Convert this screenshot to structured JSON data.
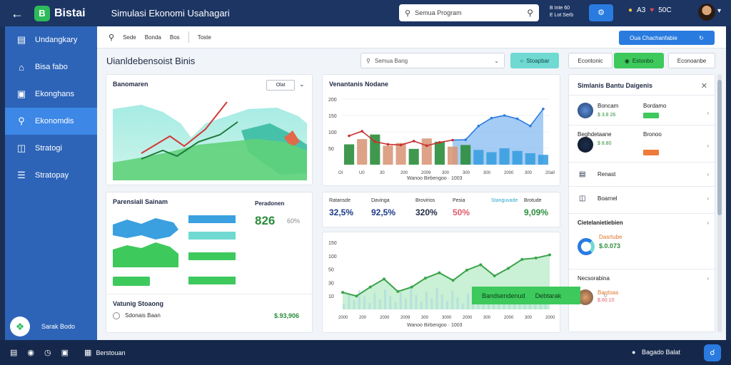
{
  "topbar": {
    "logo_badge": "B",
    "logo_text": "Bistai",
    "app_title": "Simulasi Ekonomi Usahagari",
    "search_placeholder": "Semua Program",
    "status_line1": "B Inte 60",
    "status_line2": "E Lot Serb",
    "user_count": "A3",
    "balance": "50C"
  },
  "sidebar": {
    "items": [
      {
        "label": "Undangkary",
        "icon": "doc-icon"
      },
      {
        "label": "Bisa fabo",
        "icon": "home-icon"
      },
      {
        "label": "Ekonghans",
        "icon": "tag-icon"
      },
      {
        "label": "Ekonomdis",
        "icon": "search-icon",
        "active": true
      },
      {
        "label": "Stratogi",
        "icon": "book-icon"
      },
      {
        "label": "Stratopay",
        "icon": "list-icon"
      }
    ],
    "footer_label": "Sarak Bodo"
  },
  "toolbar": {
    "items": [
      "Sede",
      "Bonda",
      "Bos",
      "Toste"
    ],
    "action_label": "Oua Chachanfabie"
  },
  "page_title": "Uianldebensoist Binis",
  "filter": {
    "placeholder": "Semua Bang"
  },
  "buttons": {
    "teal": "Stoapbar",
    "white1": "Econtonic",
    "green": "Estonbo",
    "white2": "Econoanbe"
  },
  "map_card": {
    "title": "Banomaren",
    "dropdown": "Olat"
  },
  "bars_card": {
    "title": "Venantanis Nodane",
    "footer": "Wanoo Birbengoo · 1003",
    "y_ticks": [
      "200",
      "150",
      "100",
      "50"
    ],
    "x_ticks": [
      "Ol",
      "U0",
      "30",
      "200",
      "2009",
      "300",
      "300",
      "300",
      "2000",
      "300",
      "20a0"
    ]
  },
  "econ_card": {
    "title": "Parensiali Sainam",
    "value_label": "Peradonen",
    "value": "826",
    "value_sub": "60%",
    "section_title": "Vatunig Stoaong",
    "row_label": "Sdonais Baan",
    "row_value": "$.93,906"
  },
  "stats": [
    {
      "label": "Ratansde",
      "value": "32,5%",
      "color": "#1e3a8a"
    },
    {
      "label": "Davinga",
      "value": "92,5%",
      "color": "#1e3a8a"
    },
    {
      "label": "Brovirios",
      "value": "320%",
      "color": "#1f2a44"
    },
    {
      "label": "Pesia",
      "value": "50%",
      "color": "#e05a6b"
    },
    {
      "label": "Stanguvade",
      "value": "",
      "color": "#2aa7c9"
    },
    {
      "label": "Brotude",
      "value": "9,09%",
      "color": "#2b8d3b"
    }
  ],
  "line_card": {
    "footer": "Wanoo Birbengoo · 1003",
    "y_ticks": [
      "150",
      "100",
      "50",
      "30",
      "10"
    ],
    "x_ticks": [
      "2000",
      "200",
      "2000",
      "2009",
      "300",
      "3000",
      "2000",
      "300",
      "2000",
      "300",
      "2000"
    ]
  },
  "right_panel": {
    "title": "Simlanis Bantu Daigenis",
    "items": [
      {
        "label": "Boncam",
        "sub": "$ 3.8 26",
        "tag": "Bordamo"
      },
      {
        "label": "Beghdetaane",
        "sub": "$ 8.80",
        "tag": "Bronoo"
      },
      {
        "label": "Renast",
        "sub": "",
        "tag": ""
      },
      {
        "label": "Boarnel",
        "sub": "",
        "tag": ""
      },
      {
        "label": "Cietelanietiebien",
        "sub": "$.0.073",
        "tag": "Dasrtube"
      },
      {
        "label": "Necsorabina",
        "sub": "$.60.10",
        "tag": "Bantoas"
      }
    ],
    "green_action": "Bandsendenud",
    "green_action2": "Debtarak"
  },
  "statusbar": {
    "label": "Berstouan",
    "right_label": "Bagado Balat"
  },
  "chart_data": [
    {
      "type": "bar",
      "title": "Venantanis Nodane",
      "ylim": [
        0,
        200
      ],
      "values": [
        62,
        78,
        92,
        58,
        66,
        48,
        80,
        70,
        55,
        60,
        45,
        38,
        50,
        42,
        35,
        30
      ],
      "line": [
        88,
        102,
        70,
        62,
        60,
        72,
        58,
        68,
        75,
        76,
        118,
        142,
        150,
        140,
        118,
        170
      ]
    },
    {
      "type": "line",
      "ylim": [
        0,
        150
      ],
      "values": [
        38,
        30,
        50,
        68,
        40,
        50,
        70,
        82,
        65,
        88,
        100,
        75,
        92,
        112,
        115,
        122
      ]
    }
  ]
}
